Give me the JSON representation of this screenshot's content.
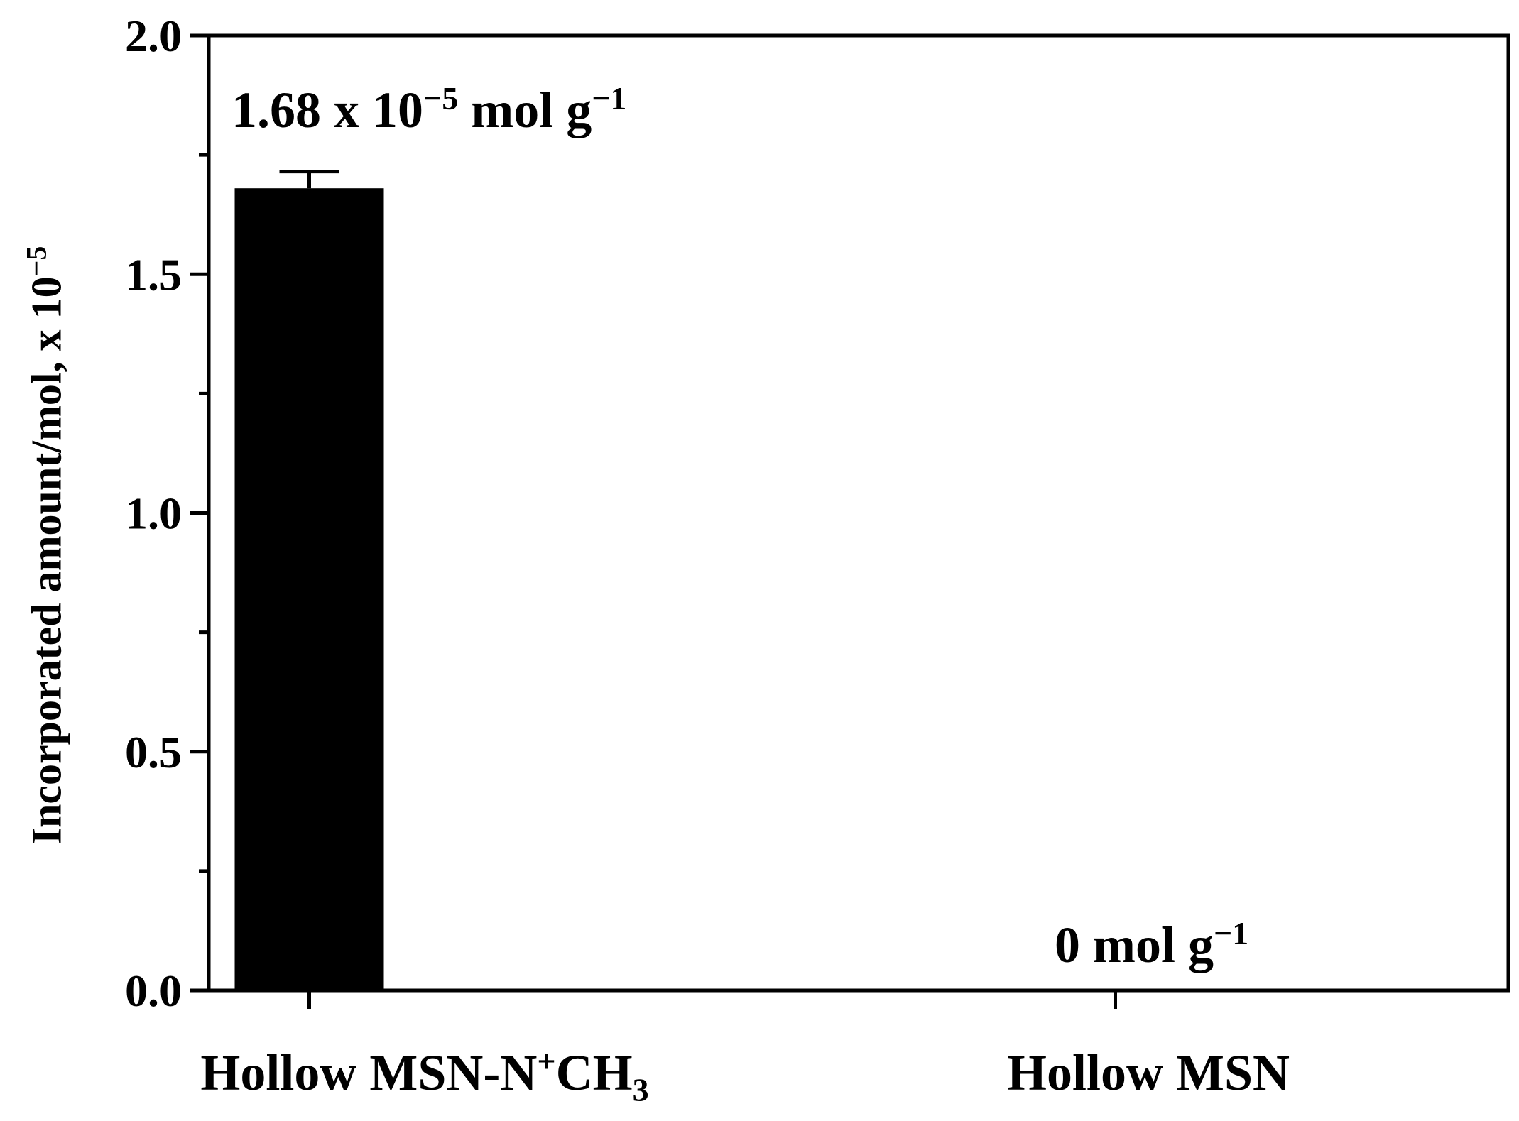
{
  "chart_data": {
    "type": "bar",
    "categories": [
      "Hollow MSN-N+CH3",
      "Hollow MSN"
    ],
    "category_labels": [
      {
        "main": "Hollow MSN-N",
        "sup": "+",
        "tail": "CH",
        "sub": "3"
      },
      {
        "main": "Hollow MSN",
        "sup": "",
        "tail": "",
        "sub": ""
      }
    ],
    "values": [
      1.68,
      0
    ],
    "errors": [
      0.035,
      0
    ],
    "bar_color": "#000000",
    "ylim": [
      0,
      2.0
    ],
    "yticks": [
      0.0,
      0.5,
      1.0,
      1.5,
      2.0
    ],
    "ytick_labels": [
      "0.0",
      "0.5",
      "1.0",
      "1.5",
      "2.0"
    ],
    "ylabel": {
      "text": "Incorporated amount/mol, x 10",
      "sup": "−5"
    },
    "xlabel": "",
    "title": "",
    "grid": false,
    "annotations": [
      {
        "text": "1.68 x 10",
        "sup1": "−5",
        "text2": " mol g",
        "sup2": "−1"
      },
      {
        "text": "0 mol g",
        "sup1": "−1",
        "text2": "",
        "sup2": ""
      }
    ]
  }
}
